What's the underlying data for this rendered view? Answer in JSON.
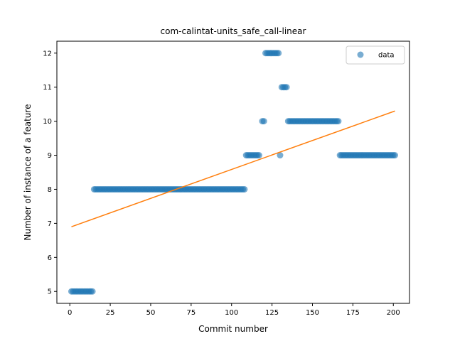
{
  "chart_data": {
    "type": "scatter",
    "title": "com-calintat-units_safe_call-linear",
    "xlabel": "Commit number",
    "ylabel": "Number of instance of a feature",
    "xlim": [
      -8,
      210
    ],
    "ylim": [
      4.65,
      12.35
    ],
    "xticks": [
      0,
      25,
      50,
      75,
      100,
      125,
      150,
      175,
      200
    ],
    "yticks": [
      5,
      6,
      7,
      8,
      9,
      10,
      11,
      12
    ],
    "grid": false,
    "legend_position": "top-right",
    "colors": {
      "data": "#1f77b4",
      "fit": "#ff7f0e"
    },
    "series": [
      {
        "name": "data",
        "kind": "scatter",
        "segments": [
          {
            "x_start": 1,
            "x_end": 14,
            "y": 5
          },
          {
            "x_start": 15,
            "x_end": 108,
            "y": 8
          },
          {
            "x_start": 109,
            "x_end": 117,
            "y": 9
          },
          {
            "x_start": 119,
            "x_end": 120,
            "y": 10
          },
          {
            "x_start": 121,
            "x_end": 129,
            "y": 12
          },
          {
            "x_start": 130,
            "x_end": 130,
            "y": 9
          },
          {
            "x_start": 131,
            "x_end": 134,
            "y": 11
          },
          {
            "x_start": 135,
            "x_end": 166,
            "y": 10
          },
          {
            "x_start": 167,
            "x_end": 201,
            "y": 9
          }
        ]
      },
      {
        "kind": "line",
        "points": [
          [
            1,
            6.9
          ],
          [
            201,
            10.3
          ]
        ]
      }
    ]
  }
}
